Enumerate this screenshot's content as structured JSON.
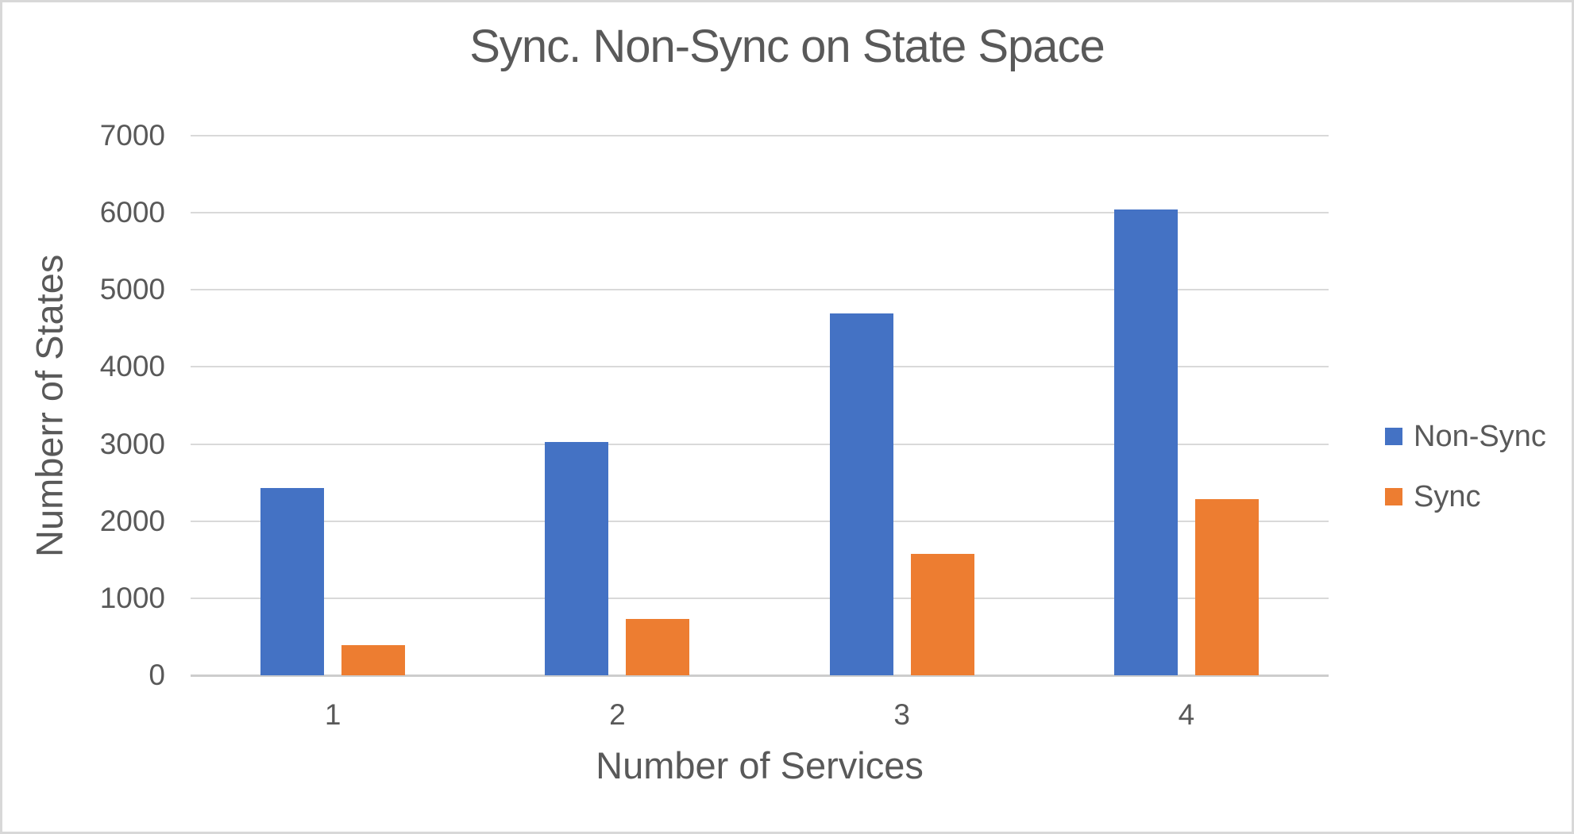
{
  "chart": {
    "title": "Sync. Non-Sync on State Space",
    "y_axis_title": "Numberr of States",
    "x_axis_title": "Number of Services"
  },
  "chart_data": {
    "type": "bar",
    "title": "Sync. Non-Sync on State Space",
    "xlabel": "Number of Services",
    "ylabel": "Numberr of States",
    "categories": [
      "1",
      "2",
      "3",
      "4"
    ],
    "series": [
      {
        "name": "Non-Sync",
        "color": "#4472C4",
        "values": [
          2430,
          3030,
          4690,
          6040
        ]
      },
      {
        "name": "Sync",
        "color": "#ED7D31",
        "values": [
          390,
          730,
          1580,
          2290
        ]
      }
    ],
    "ylim": [
      0,
      7000
    ],
    "y_tick_step": 1000,
    "y_tick_labels": [
      "0",
      "1000",
      "2000",
      "3000",
      "4000",
      "5000",
      "6000",
      "7000"
    ],
    "grid": "horizontal",
    "legend_position": "right",
    "colors": {
      "text": "#595959",
      "gridline": "#D9D9D9",
      "axis_line": "#CDCDCD",
      "background": "#FFFFFF",
      "frame_border": "#D8D8D8"
    }
  }
}
